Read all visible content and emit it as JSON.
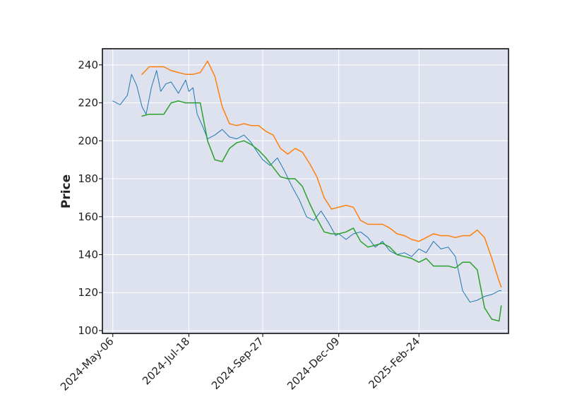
{
  "chart_data": {
    "type": "line",
    "ylabel": "Price",
    "xlabel": "",
    "ylim": [
      98.5,
      248.5
    ],
    "xlim": [
      "2024-04-26",
      "2025-05-21"
    ],
    "y_ticks": [
      100,
      120,
      140,
      160,
      180,
      200,
      220,
      240
    ],
    "x_ticks": [
      "2024-May-06",
      "2024-Jul-18",
      "2024-Sep-27",
      "2024-Dec-09",
      "2025-Feb-24"
    ],
    "x_tick_dates": [
      "2024-05-06",
      "2024-07-18",
      "2024-09-27",
      "2024-12-09",
      "2025-02-24"
    ],
    "grid": true,
    "background": "#dde2ee",
    "series": [
      {
        "color": "#1f77b4",
        "width": 1,
        "dates": [
          "2024-05-06",
          "2024-05-13",
          "2024-05-20",
          "2024-05-24",
          "2024-05-29",
          "2024-06-03",
          "2024-06-07",
          "2024-06-12",
          "2024-06-17",
          "2024-06-21",
          "2024-06-26",
          "2024-07-01",
          "2024-07-08",
          "2024-07-15",
          "2024-07-18",
          "2024-07-22",
          "2024-07-26",
          "2024-07-31",
          "2024-08-05",
          "2024-08-12",
          "2024-08-19",
          "2024-08-26",
          "2024-09-02",
          "2024-09-09",
          "2024-09-16",
          "2024-09-23",
          "2024-09-27",
          "2024-10-04",
          "2024-10-11",
          "2024-10-18",
          "2024-10-25",
          "2024-11-01",
          "2024-11-08",
          "2024-11-15",
          "2024-11-22",
          "2024-11-29",
          "2024-12-06",
          "2024-12-09",
          "2024-12-16",
          "2024-12-23",
          "2024-12-30",
          "2025-01-06",
          "2025-01-13",
          "2025-01-20",
          "2025-01-27",
          "2025-02-03",
          "2025-02-10",
          "2025-02-17",
          "2025-02-24",
          "2025-03-03",
          "2025-03-10",
          "2025-03-17",
          "2025-03-24",
          "2025-03-31",
          "2025-04-07",
          "2025-04-14",
          "2025-04-21",
          "2025-04-28",
          "2025-05-05",
          "2025-05-12",
          "2025-05-14"
        ],
        "values": [
          221,
          219,
          224,
          235,
          229,
          218,
          214,
          228,
          237,
          226,
          230,
          231,
          225,
          232,
          226,
          228,
          214,
          208,
          201,
          203,
          206,
          202,
          201,
          203,
          199,
          193,
          190,
          187,
          191,
          184,
          176,
          169,
          160,
          158,
          163,
          157,
          150,
          151,
          148,
          151,
          152,
          149,
          144,
          147,
          142,
          140,
          141,
          139,
          143,
          141,
          147,
          143,
          144,
          139,
          121,
          115,
          116,
          118,
          119,
          121,
          121
        ]
      },
      {
        "color": "#ff7f0e",
        "width": 1.5,
        "dates": [
          "2024-06-03",
          "2024-06-10",
          "2024-06-17",
          "2024-06-24",
          "2024-07-01",
          "2024-07-08",
          "2024-07-15",
          "2024-07-22",
          "2024-07-29",
          "2024-08-05",
          "2024-08-12",
          "2024-08-19",
          "2024-08-26",
          "2024-09-02",
          "2024-09-09",
          "2024-09-16",
          "2024-09-23",
          "2024-09-30",
          "2024-10-07",
          "2024-10-14",
          "2024-10-21",
          "2024-10-28",
          "2024-11-04",
          "2024-11-11",
          "2024-11-18",
          "2024-11-25",
          "2024-12-02",
          "2024-12-09",
          "2024-12-16",
          "2024-12-23",
          "2024-12-30",
          "2025-01-06",
          "2025-01-13",
          "2025-01-20",
          "2025-01-27",
          "2025-02-03",
          "2025-02-10",
          "2025-02-17",
          "2025-02-24",
          "2025-03-03",
          "2025-03-10",
          "2025-03-17",
          "2025-03-24",
          "2025-03-31",
          "2025-04-07",
          "2025-04-14",
          "2025-04-21",
          "2025-04-28",
          "2025-05-05",
          "2025-05-12",
          "2025-05-14"
        ],
        "values": [
          235,
          239,
          239,
          239,
          237,
          236,
          235,
          235,
          236,
          242,
          234,
          218,
          209,
          208,
          209,
          208,
          208,
          205,
          203,
          196,
          193,
          196,
          194,
          188,
          181,
          170,
          164,
          165,
          166,
          165,
          158,
          156,
          156,
          156,
          154,
          151,
          150,
          148,
          147,
          149,
          151,
          150,
          150,
          149,
          150,
          150,
          153,
          149,
          138,
          126,
          123
        ]
      },
      {
        "color": "#2ca02c",
        "width": 1.5,
        "dates": [
          "2024-06-03",
          "2024-06-10",
          "2024-06-17",
          "2024-06-24",
          "2024-07-01",
          "2024-07-08",
          "2024-07-15",
          "2024-07-22",
          "2024-07-29",
          "2024-08-05",
          "2024-08-12",
          "2024-08-19",
          "2024-08-26",
          "2024-09-02",
          "2024-09-09",
          "2024-09-16",
          "2024-09-23",
          "2024-09-30",
          "2024-10-07",
          "2024-10-14",
          "2024-10-21",
          "2024-10-28",
          "2024-11-04",
          "2024-11-11",
          "2024-11-18",
          "2024-11-25",
          "2024-12-02",
          "2024-12-09",
          "2024-12-16",
          "2024-12-23",
          "2024-12-30",
          "2025-01-06",
          "2025-01-13",
          "2025-01-20",
          "2025-01-27",
          "2025-02-03",
          "2025-02-10",
          "2025-02-17",
          "2025-02-24",
          "2025-03-03",
          "2025-03-10",
          "2025-03-17",
          "2025-03-24",
          "2025-03-31",
          "2025-04-07",
          "2025-04-14",
          "2025-04-21",
          "2025-04-28",
          "2025-05-05",
          "2025-05-12",
          "2025-05-14"
        ],
        "values": [
          213,
          214,
          214,
          214,
          220,
          221,
          220,
          220,
          220,
          200,
          190,
          189,
          196,
          199,
          200,
          198,
          195,
          191,
          186,
          181,
          180,
          180,
          176,
          167,
          159,
          152,
          151,
          151,
          152,
          154,
          147,
          144,
          145,
          146,
          144,
          140,
          139,
          138,
          136,
          138,
          134,
          134,
          134,
          133,
          136,
          136,
          132,
          112,
          106,
          105,
          113
        ]
      }
    ]
  }
}
